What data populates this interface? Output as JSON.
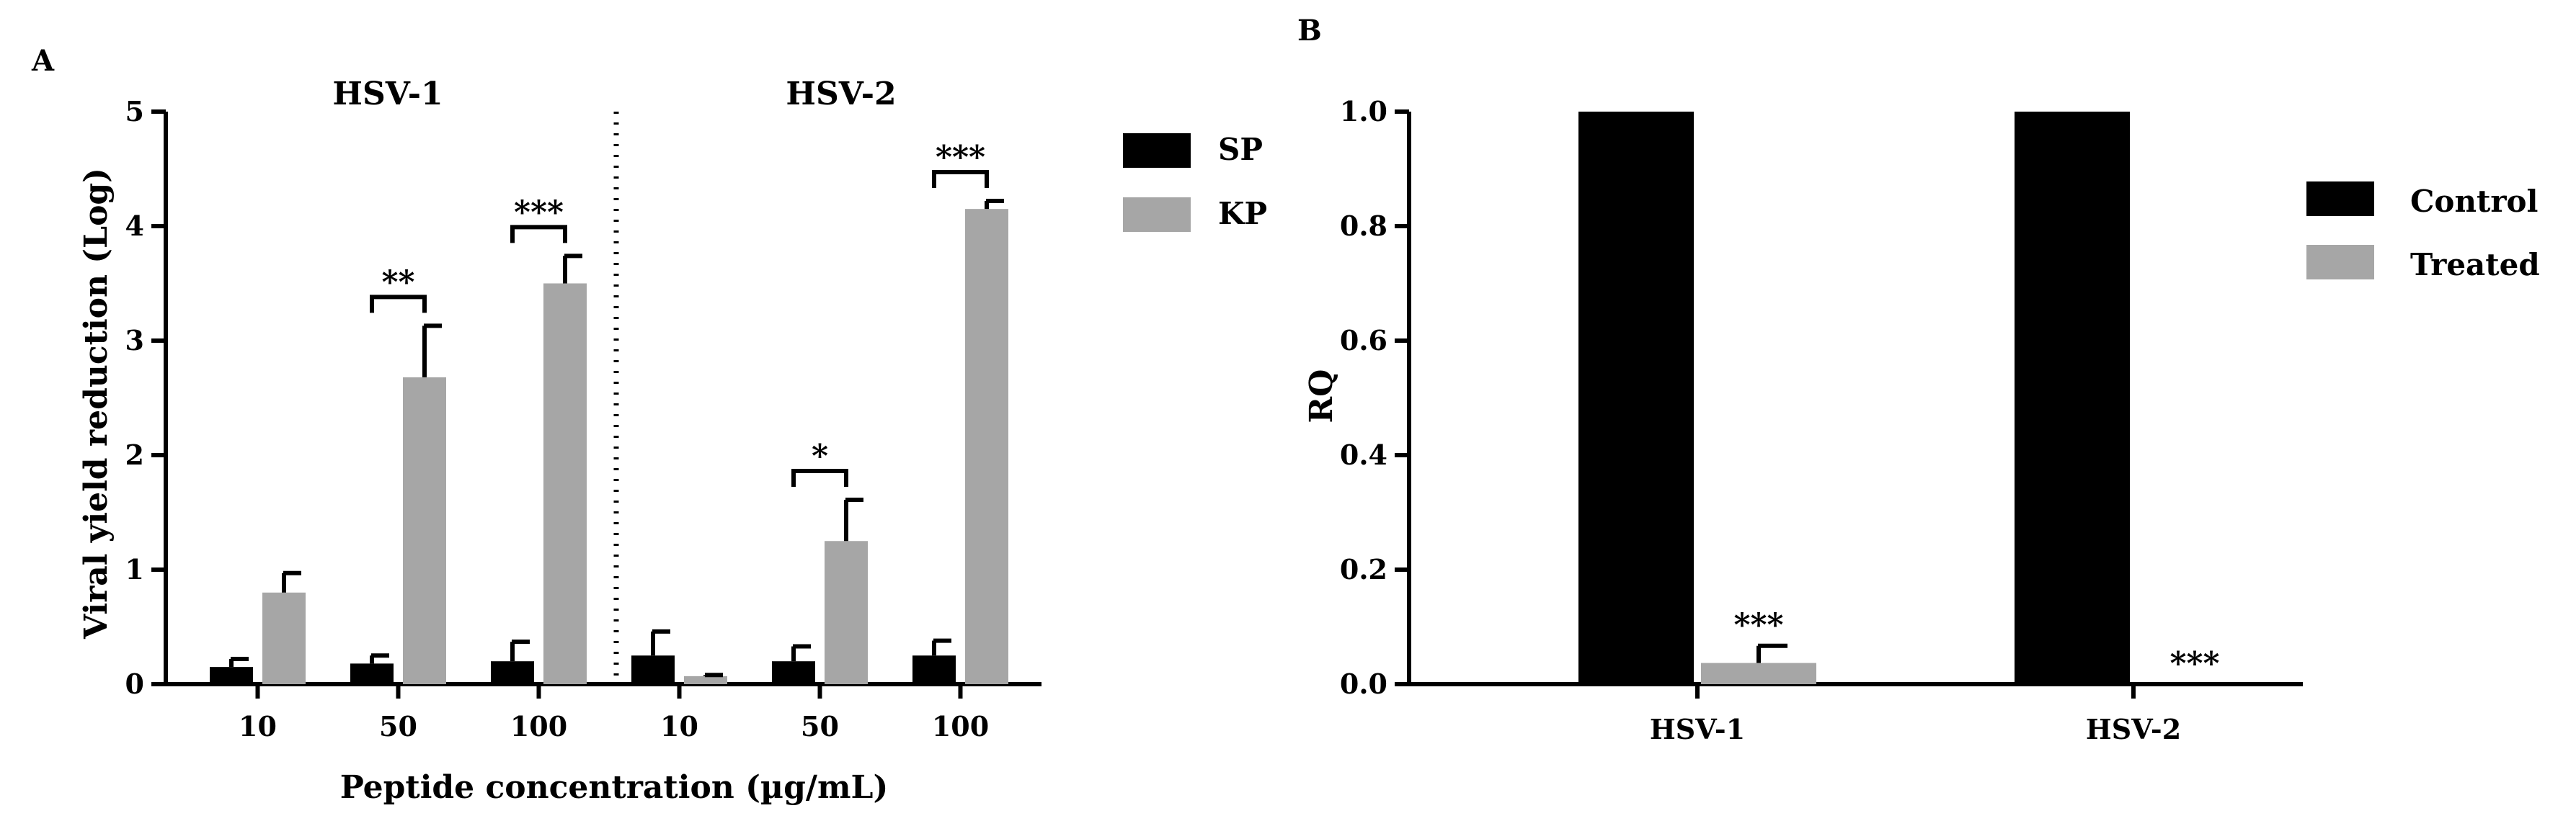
{
  "chart_data": [
    {
      "panel": "A",
      "type": "bar",
      "ylabel": "Viral yield reduction (Log)",
      "xlabel": "Peptide concentration (µg/mL)",
      "ylim": [
        0,
        5
      ],
      "yticks": [
        "0",
        "1",
        "2",
        "3",
        "4",
        "5"
      ],
      "groups": [
        {
          "title": "HSV-1",
          "categories": [
            "10",
            "50",
            "100"
          ]
        },
        {
          "title": "HSV-2",
          "categories": [
            "10",
            "50",
            "100"
          ]
        }
      ],
      "categories": [
        "10",
        "50",
        "100",
        "10",
        "50",
        "100"
      ],
      "series": [
        {
          "name": "SP",
          "color": "#000000",
          "values": [
            0.15,
            0.18,
            0.2,
            0.25,
            0.2,
            0.25
          ],
          "errors": [
            0.07,
            0.07,
            0.17,
            0.21,
            0.13,
            0.13
          ]
        },
        {
          "name": "KP",
          "color": "#a6a6a6",
          "values": [
            0.8,
            2.68,
            3.5,
            0.07,
            1.25,
            4.15
          ],
          "errors": [
            0.17,
            0.45,
            0.24,
            0.01,
            0.36,
            0.07
          ]
        }
      ],
      "significance": [
        "",
        "**",
        "***",
        "",
        "*",
        "***"
      ],
      "legend": {
        "position": "top-right",
        "items": [
          "SP",
          "KP"
        ]
      },
      "grid": false
    },
    {
      "panel": "B",
      "type": "bar",
      "ylabel": "RQ",
      "xlabel": "",
      "ylim": [
        0,
        1.0
      ],
      "yticks": [
        "0.0",
        "0.2",
        "0.4",
        "0.6",
        "0.8",
        "1.0"
      ],
      "categories": [
        "HSV-1",
        "HSV-2"
      ],
      "series": [
        {
          "name": "Control",
          "color": "#000000",
          "values": [
            1.0,
            1.0
          ],
          "errors": [
            0,
            0
          ]
        },
        {
          "name": "Treated",
          "color": "#a6a6a6",
          "values": [
            0.037,
            0.0
          ],
          "errors": [
            0.03,
            0
          ]
        }
      ],
      "significance": [
        "***",
        "***"
      ],
      "legend": {
        "position": "top-right",
        "items": [
          "Control",
          "Treated"
        ]
      },
      "grid": false
    }
  ]
}
